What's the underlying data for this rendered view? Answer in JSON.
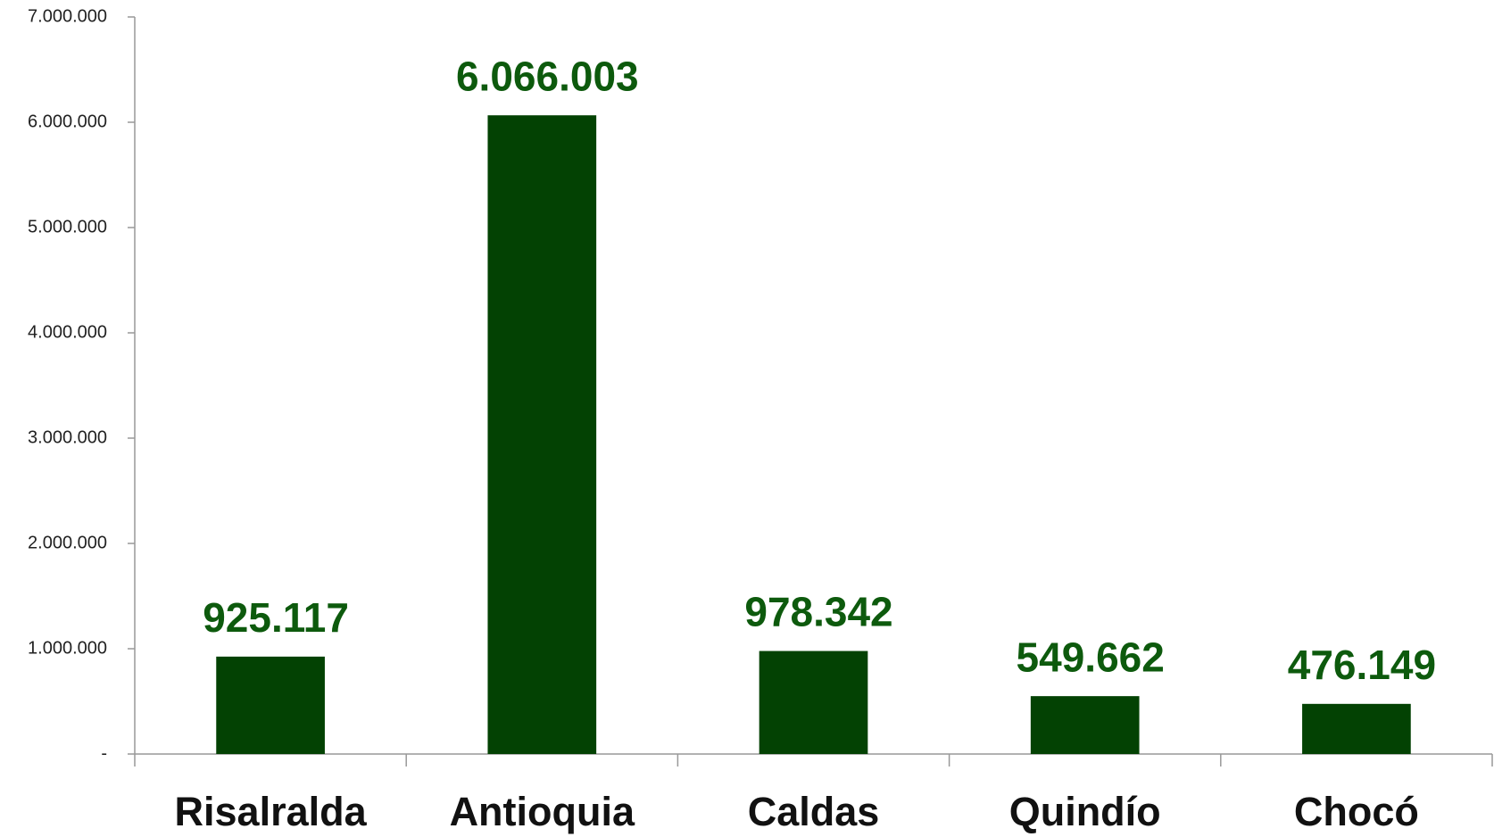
{
  "chart_data": {
    "type": "bar",
    "categories": [
      "Risalralda",
      "Antioquia",
      "Caldas",
      "Quindío",
      "Chocó"
    ],
    "values": [
      925117,
      6066003,
      978342,
      549662,
      476149
    ],
    "value_labels": [
      "925.117",
      "6.066.003",
      "978.342",
      "549.662",
      "476.149"
    ],
    "color": "#034203",
    "ylim": [
      0,
      7000000
    ],
    "yticks": [
      {
        "value": 0,
        "label": "-"
      },
      {
        "value": 1000000,
        "label": "1.000.000"
      },
      {
        "value": 2000000,
        "label": "2.000.000"
      },
      {
        "value": 3000000,
        "label": "3.000.000"
      },
      {
        "value": 4000000,
        "label": "4.000.000"
      },
      {
        "value": 5000000,
        "label": "5.000.000"
      },
      {
        "value": 6000000,
        "label": "6.000.000"
      },
      {
        "value": 7000000,
        "label": "7.000.000"
      }
    ],
    "grid": false
  }
}
